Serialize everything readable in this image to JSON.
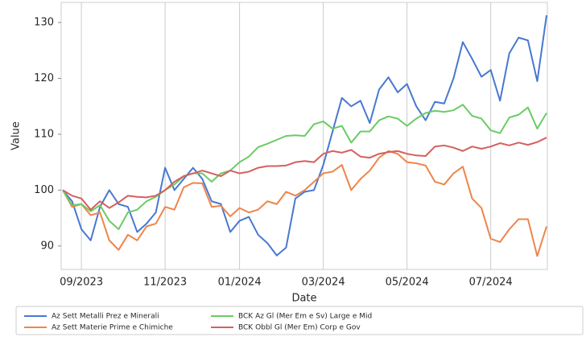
{
  "chart_data": {
    "type": "line",
    "x_label": "Date",
    "y_label": "Value",
    "categories": [
      null,
      null,
      "09/2023",
      null,
      null,
      null,
      null,
      null,
      null,
      null,
      null,
      "11/2023",
      null,
      null,
      null,
      null,
      null,
      null,
      null,
      "01/2024",
      null,
      null,
      null,
      null,
      null,
      null,
      null,
      null,
      "03/2024",
      null,
      null,
      null,
      null,
      null,
      null,
      null,
      null,
      "05/2024",
      null,
      null,
      null,
      null,
      null,
      null,
      null,
      null,
      "07/2024",
      null,
      null,
      null,
      null,
      null,
      null
    ],
    "series": [
      {
        "name": "Az Sett Metalli Prez e Minerali",
        "color": "#4878d0",
        "values": [
          100,
          98,
          93,
          91,
          97,
          100,
          97.5,
          97,
          92.5,
          94,
          96,
          104,
          100,
          102,
          104,
          102,
          98,
          97.5,
          92.5,
          94.5,
          95.2,
          92,
          90.5,
          88.3,
          89.7,
          98.5,
          99.7,
          100,
          104.5,
          110.5,
          116.5,
          115,
          116,
          112,
          118,
          120.2,
          117.5,
          119,
          115,
          112.5,
          115.8,
          115.5,
          120,
          126.5,
          123.5,
          120.3,
          121.5,
          116,
          124.5,
          127.3,
          126.8,
          119.5,
          131.3
        ]
      },
      {
        "name": "Az Sett Materie Prime e Chimiche",
        "color": "#ee854a",
        "values": [
          100,
          97,
          97.5,
          95.5,
          96,
          91,
          89.3,
          92,
          91,
          93.5,
          94,
          97,
          96.5,
          100.5,
          101.3,
          101.2,
          97,
          97.2,
          95.3,
          96.8,
          96,
          96.5,
          98,
          97.5,
          99.7,
          99,
          100,
          101.5,
          103,
          103.3,
          104.5,
          100,
          102,
          103.5,
          105.8,
          107,
          106.5,
          105,
          104.8,
          104.4,
          101.5,
          101,
          103,
          104.2,
          98.5,
          96.8,
          91.3,
          90.7,
          93,
          94.8,
          94.8,
          88.2,
          93.5
        ]
      },
      {
        "name": "BCK Az Gl (Mer Em e Sv) Large e Mid",
        "color": "#6acc64",
        "values": [
          100,
          97.3,
          97.5,
          96.2,
          97.3,
          94.5,
          93,
          96,
          96.5,
          98,
          98.8,
          100,
          101,
          102.5,
          103,
          103,
          101.5,
          103,
          103.5,
          105,
          106,
          107.7,
          108.3,
          109,
          109.7,
          109.8,
          109.7,
          111.8,
          112.3,
          111,
          111.5,
          108.5,
          110.5,
          110.5,
          112.5,
          113.2,
          112.8,
          111.5,
          112.8,
          113.8,
          114.2,
          114,
          114.3,
          115.3,
          113.3,
          112.8,
          110.7,
          110.2,
          113,
          113.5,
          114.8,
          111,
          113.8
        ]
      },
      {
        "name": "BCK Obbl Gl (Mer Em) Corp e Gov",
        "color": "#d65f5f",
        "values": [
          100,
          99,
          98.5,
          96.5,
          98,
          96.8,
          97.8,
          99,
          98.8,
          98.7,
          99,
          100,
          101.5,
          102.5,
          103,
          103.5,
          103,
          102.5,
          103.5,
          103,
          103.3,
          104,
          104.3,
          104.3,
          104.4,
          105,
          105.2,
          105,
          106.5,
          107,
          106.7,
          107.2,
          106,
          105.8,
          106.5,
          106.8,
          107,
          106.5,
          106.2,
          106.1,
          107.8,
          108,
          107.6,
          107,
          107.8,
          107.4,
          107.8,
          108.4,
          108,
          108.5,
          108.1,
          108.6,
          109.4
        ]
      }
    ],
    "ylim": [
      85.8,
      133.6
    ],
    "yticks": [
      90,
      100,
      110,
      120,
      130
    ],
    "grid": true
  }
}
